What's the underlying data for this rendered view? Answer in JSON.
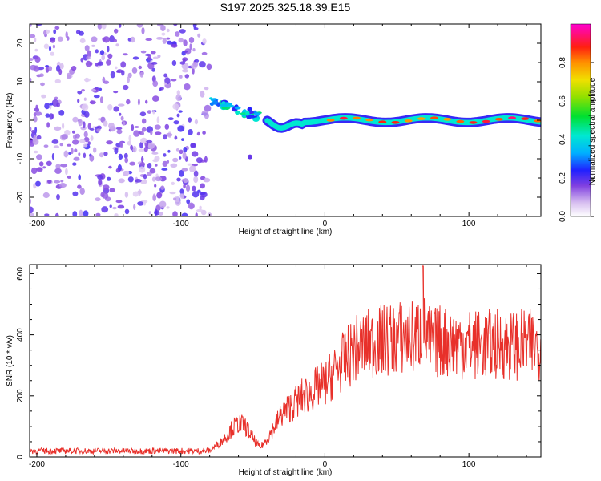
{
  "chart_data": [
    {
      "id": "spectrogram",
      "type": "heatmap",
      "title": "S197.2025.325.18.39.E15",
      "xlabel": "Height of straight line (km)",
      "ylabel": "Frequency (Hz)",
      "xlim": [
        -205,
        150
      ],
      "ylim": [
        -25,
        25
      ],
      "xticks": [
        -200,
        -100,
        0,
        100
      ],
      "yticks": [
        -20,
        -10,
        0,
        10,
        20
      ],
      "colorbar": {
        "label": "Normalized spectral amplitude",
        "range": [
          0,
          1
        ],
        "ticks": [
          0,
          0.2,
          0.4,
          0.6,
          0.8
        ],
        "tick_labels": [
          "0.0",
          "0.2",
          "0.4",
          "0.6",
          "0.8"
        ]
      },
      "features": [
        {
          "name": "noise-region",
          "x_range": [
            -205,
            -80
          ],
          "freq_range": [
            -25,
            25
          ],
          "amplitude": 0.15
        },
        {
          "name": "onset-cluster",
          "x_range": [
            -80,
            -45
          ],
          "freq_range": [
            1,
            5
          ],
          "amplitude": 0.35
        },
        {
          "name": "signal-line",
          "x_range": [
            -40,
            150
          ],
          "center_freq_hz": 0,
          "amplitude": 0.9
        }
      ]
    },
    {
      "id": "snr",
      "type": "line",
      "xlabel": "Height of straight line (km)",
      "ylabel": "SNR (10 * v/v)",
      "xlim": [
        -205,
        150
      ],
      "ylim": [
        0,
        630
      ],
      "xticks": [
        -200,
        -100,
        0,
        100
      ],
      "yticks": [
        0,
        200,
        400,
        600
      ],
      "color": "#e8302a",
      "series": [
        {
          "name": "SNR",
          "x": [
            -205,
            -150,
            -100,
            -80,
            -70,
            -65,
            -60,
            -55,
            -50,
            -45,
            -40,
            -35,
            -30,
            -25,
            -20,
            -15,
            -10,
            -5,
            0,
            5,
            10,
            15,
            20,
            25,
            30,
            40,
            50,
            60,
            65,
            68,
            70,
            75,
            80,
            90,
            100,
            110,
            120,
            130,
            140,
            150
          ],
          "y": [
            20,
            20,
            20,
            20,
            60,
            90,
            110,
            100,
            60,
            30,
            60,
            100,
            140,
            160,
            180,
            200,
            210,
            230,
            240,
            270,
            300,
            320,
            350,
            360,
            370,
            380,
            390,
            390,
            400,
            420,
            390,
            370,
            380,
            375,
            370,
            365,
            370,
            365,
            370,
            360
          ]
        }
      ]
    }
  ]
}
